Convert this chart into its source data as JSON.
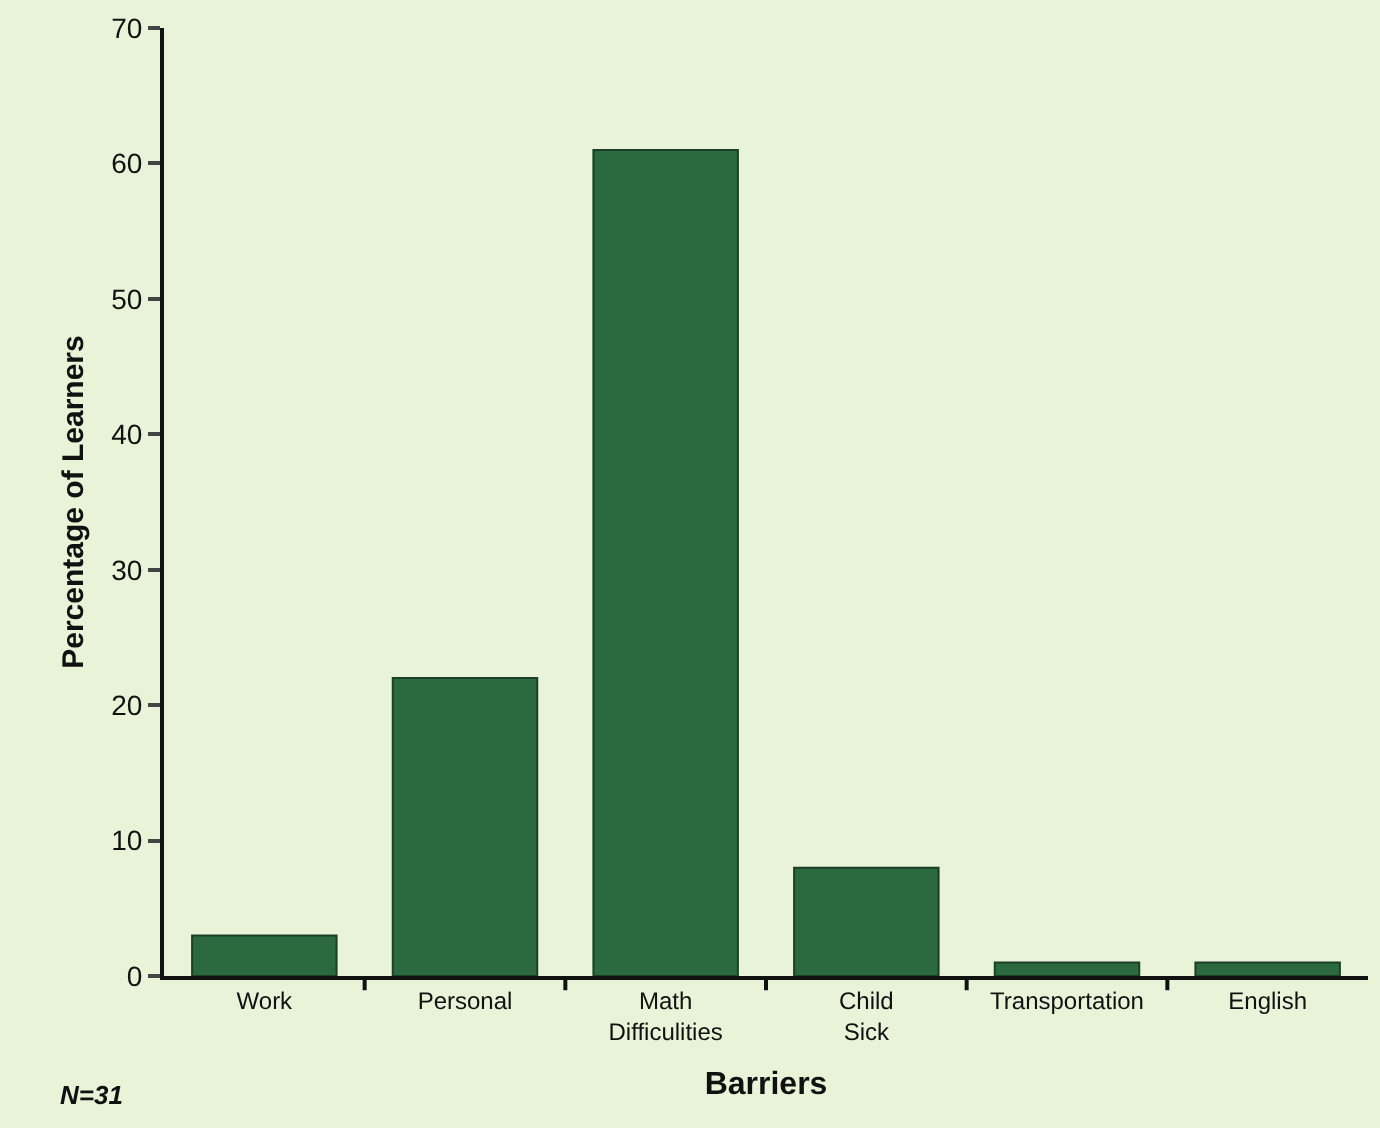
{
  "chart_data": {
    "type": "bar",
    "xlabel": "Barriers",
    "ylabel": "Percentage of Learners",
    "categories": [
      "Work",
      "Personal",
      "Math Difficulities",
      "Child Sick",
      "Transportation",
      "English"
    ],
    "values": [
      3,
      22,
      61,
      8,
      1,
      1
    ],
    "color": "#2b6a3e",
    "ylim": [
      0,
      70
    ],
    "yticks": [
      0,
      10,
      20,
      30,
      40,
      50,
      60,
      70
    ],
    "annotations": [
      "N=31"
    ]
  }
}
